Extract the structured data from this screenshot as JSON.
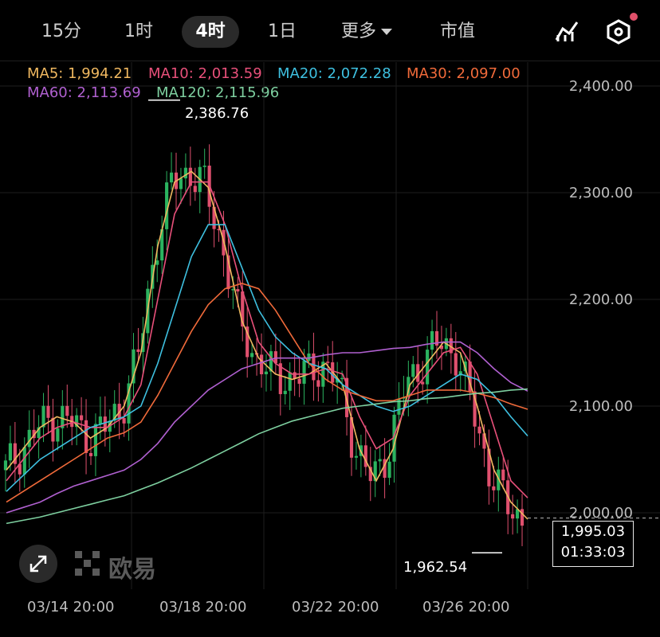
{
  "timeframes": {
    "tf_15m": "15分",
    "tf_1h": "1时",
    "tf_4h": "4时",
    "tf_1d": "1日",
    "tf_more": "更多",
    "tf_mcap": "市值"
  },
  "toolbar_icons": [
    "indicator-icon",
    "settings-hexagon-icon"
  ],
  "legend": [
    {
      "text": "MA5: 1,994.21",
      "color": "#f0b860"
    },
    {
      "text": "MA10: 2,013.59",
      "color": "#e8507a"
    },
    {
      "text": "MA20: 2,072.28",
      "color": "#3ec0e0"
    },
    {
      "text": "MA30: 2,097.00",
      "color": "#f06a3a"
    },
    {
      "text": "MA60: 2,113.69",
      "color": "#b060d0"
    },
    {
      "text": "MA120: 2,115.96",
      "color": "#7ed0a0"
    }
  ],
  "y_ticks": [
    "2,400.00",
    "2,300.00",
    "2,200.00",
    "2,100.00",
    "2,000.00"
  ],
  "x_ticks": [
    "03/14 20:00",
    "03/18 20:00",
    "03/22 20:00",
    "03/26 20:00"
  ],
  "high_label": "2,386.76",
  "low_label": "1,962.54",
  "price_box": {
    "price": "1,995.03",
    "countdown": "01:33:03"
  },
  "watermark": "欧易",
  "colors": {
    "up": "#2bb35f",
    "down": "#e0506e",
    "bg": "#000000",
    "grid": "#1e1e1e"
  },
  "chart_data": {
    "type": "line",
    "ylim": [
      1950,
      2400
    ],
    "y_ticks": [
      2400,
      2300,
      2200,
      2100,
      2000
    ],
    "x_ticks": [
      "03/14 20:00",
      "03/18 20:00",
      "03/22 20:00",
      "03/26 20:00"
    ],
    "high": 2386.76,
    "low": 1962.54,
    "last_price": 1995.03,
    "series": [
      {
        "name": "MA5",
        "color": "#f0b860",
        "values": [
          2040,
          2060,
          2080,
          2090,
          2085,
          2070,
          2080,
          2100,
          2150,
          2250,
          2310,
          2320,
          2305,
          2250,
          2180,
          2145,
          2130,
          2125,
          2130,
          2140,
          2120,
          2060,
          2030,
          2060,
          2120,
          2140,
          2160,
          2150,
          2100,
          2040,
          2010,
          1994
        ]
      },
      {
        "name": "MA10",
        "color": "#e8507a",
        "values": [
          2030,
          2050,
          2070,
          2080,
          2085,
          2080,
          2080,
          2090,
          2120,
          2200,
          2280,
          2310,
          2310,
          2270,
          2210,
          2160,
          2140,
          2130,
          2130,
          2135,
          2130,
          2090,
          2060,
          2070,
          2110,
          2130,
          2150,
          2155,
          2130,
          2080,
          2030,
          2014
        ]
      },
      {
        "name": "MA20",
        "color": "#3ec0e0",
        "values": [
          2020,
          2035,
          2050,
          2060,
          2070,
          2080,
          2085,
          2090,
          2100,
          2140,
          2190,
          2240,
          2270,
          2270,
          2230,
          2190,
          2165,
          2150,
          2140,
          2135,
          2120,
          2110,
          2100,
          2095,
          2100,
          2110,
          2120,
          2130,
          2125,
          2110,
          2090,
          2072
        ]
      },
      {
        "name": "MA30",
        "color": "#f06a3a",
        "values": [
          2010,
          2020,
          2030,
          2040,
          2050,
          2060,
          2070,
          2075,
          2085,
          2110,
          2140,
          2170,
          2195,
          2210,
          2215,
          2210,
          2190,
          2165,
          2140,
          2125,
          2115,
          2110,
          2105,
          2105,
          2110,
          2115,
          2115,
          2115,
          2112,
          2108,
          2102,
          2097
        ]
      },
      {
        "name": "MA60",
        "color": "#b060d0",
        "values": [
          2000,
          2005,
          2010,
          2018,
          2025,
          2030,
          2035,
          2040,
          2050,
          2065,
          2085,
          2100,
          2115,
          2125,
          2135,
          2140,
          2145,
          2145,
          2145,
          2148,
          2150,
          2150,
          2152,
          2154,
          2155,
          2158,
          2160,
          2160,
          2150,
          2135,
          2122,
          2114
        ]
      },
      {
        "name": "MA120",
        "color": "#7ed0a0",
        "values": [
          1990,
          1993,
          1996,
          2000,
          2004,
          2008,
          2012,
          2016,
          2022,
          2028,
          2035,
          2042,
          2050,
          2058,
          2066,
          2074,
          2080,
          2086,
          2090,
          2094,
          2098,
          2100,
          2102,
          2104,
          2105,
          2107,
          2108,
          2110,
          2112,
          2113,
          2115,
          2116
        ]
      }
    ]
  }
}
